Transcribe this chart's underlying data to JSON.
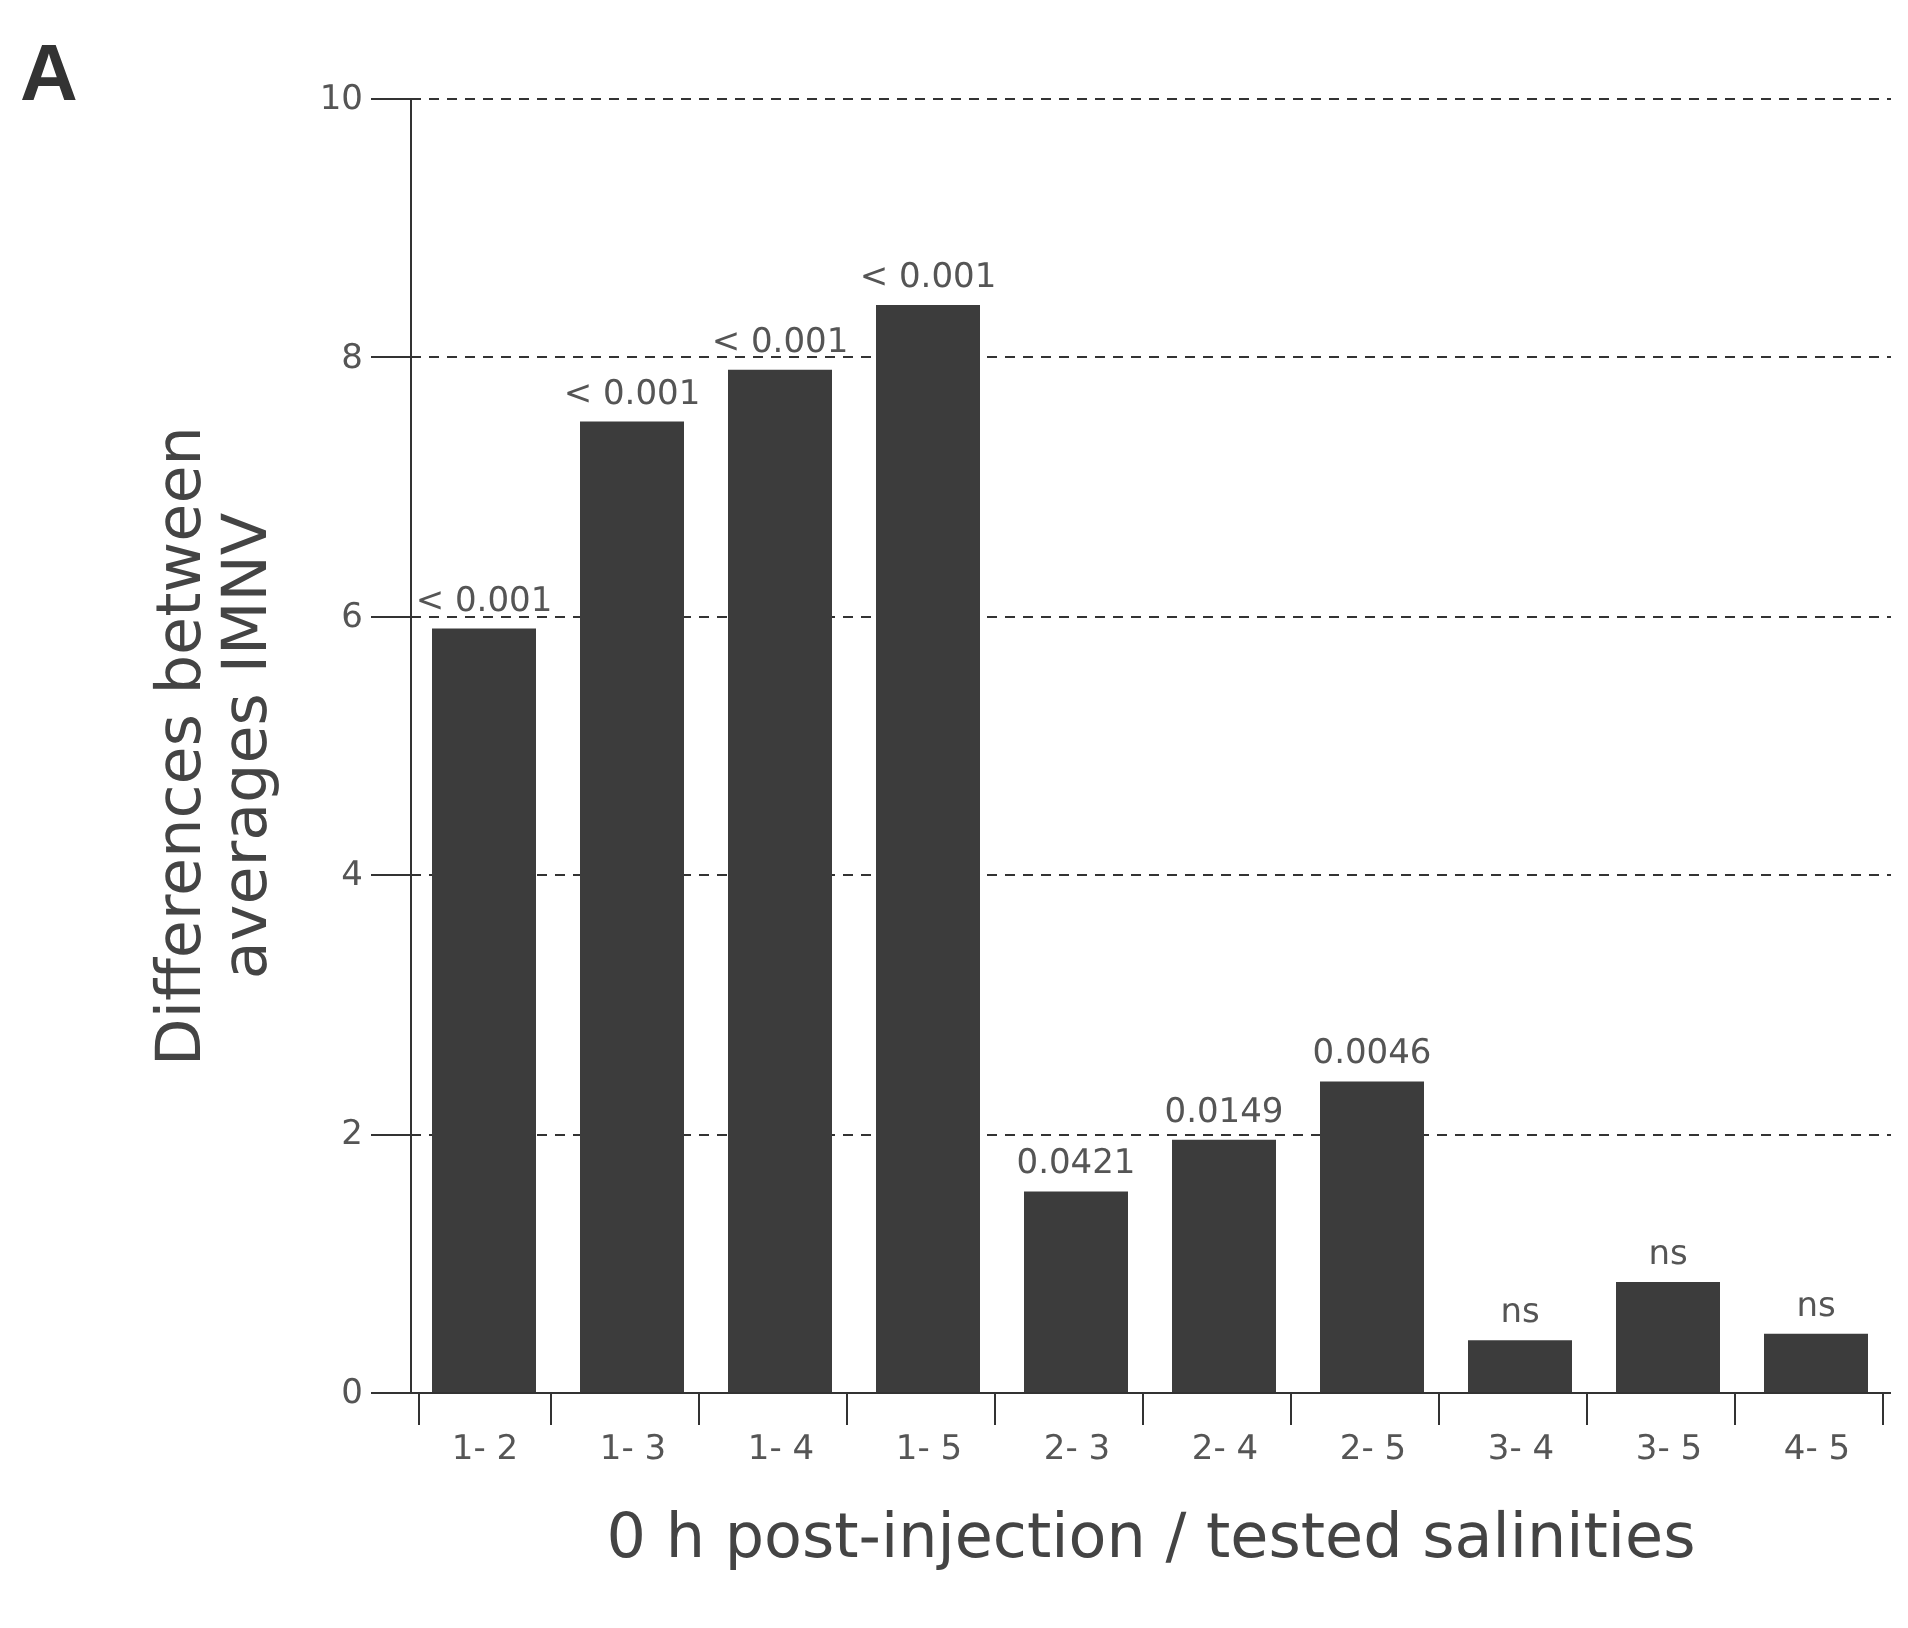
{
  "chart_data": {
    "type": "bar",
    "xlabel": "0 h post-injection / tested salinities",
    "ylabel": "Differences between\naverages IMNV",
    "categories": [
      "1- 2",
      "1- 3",
      "1- 4",
      "1- 5",
      "2- 3",
      "2- 4",
      "2- 5",
      "3- 4",
      "3- 5",
      "4- 5"
    ],
    "values": [
      5.9,
      7.5,
      7.9,
      8.4,
      1.55,
      1.95,
      2.4,
      0.4,
      0.85,
      0.45
    ],
    "color": "#3c3c3c",
    "ylim": [
      0,
      10
    ],
    "yticks": [
      0,
      2,
      4,
      6,
      8,
      10
    ],
    "grid": "y",
    "annotations": [
      "A",
      {
        "text": "< 0.001",
        "x": "1- 2",
        "y": 5.9
      },
      {
        "text": "< 0.001",
        "x": "1- 3",
        "y": 7.5
      },
      {
        "text": "< 0.001",
        "x": "1- 4",
        "y": 7.9
      },
      {
        "text": "< 0.001",
        "x": "1- 5",
        "y": 8.4
      },
      {
        "text": "0.0421",
        "x": "2- 3",
        "y": 1.55
      },
      {
        "text": "0.0149",
        "x": "2- 4",
        "y": 1.95
      },
      {
        "text": "0.0046",
        "x": "2- 5",
        "y": 2.4
      },
      {
        "text": "ns",
        "x": "3- 4",
        "y": 0.4
      },
      {
        "text": "ns",
        "x": "3- 5",
        "y": 0.85
      },
      {
        "text": "ns",
        "x": "4- 5",
        "y": 0.45
      }
    ]
  }
}
